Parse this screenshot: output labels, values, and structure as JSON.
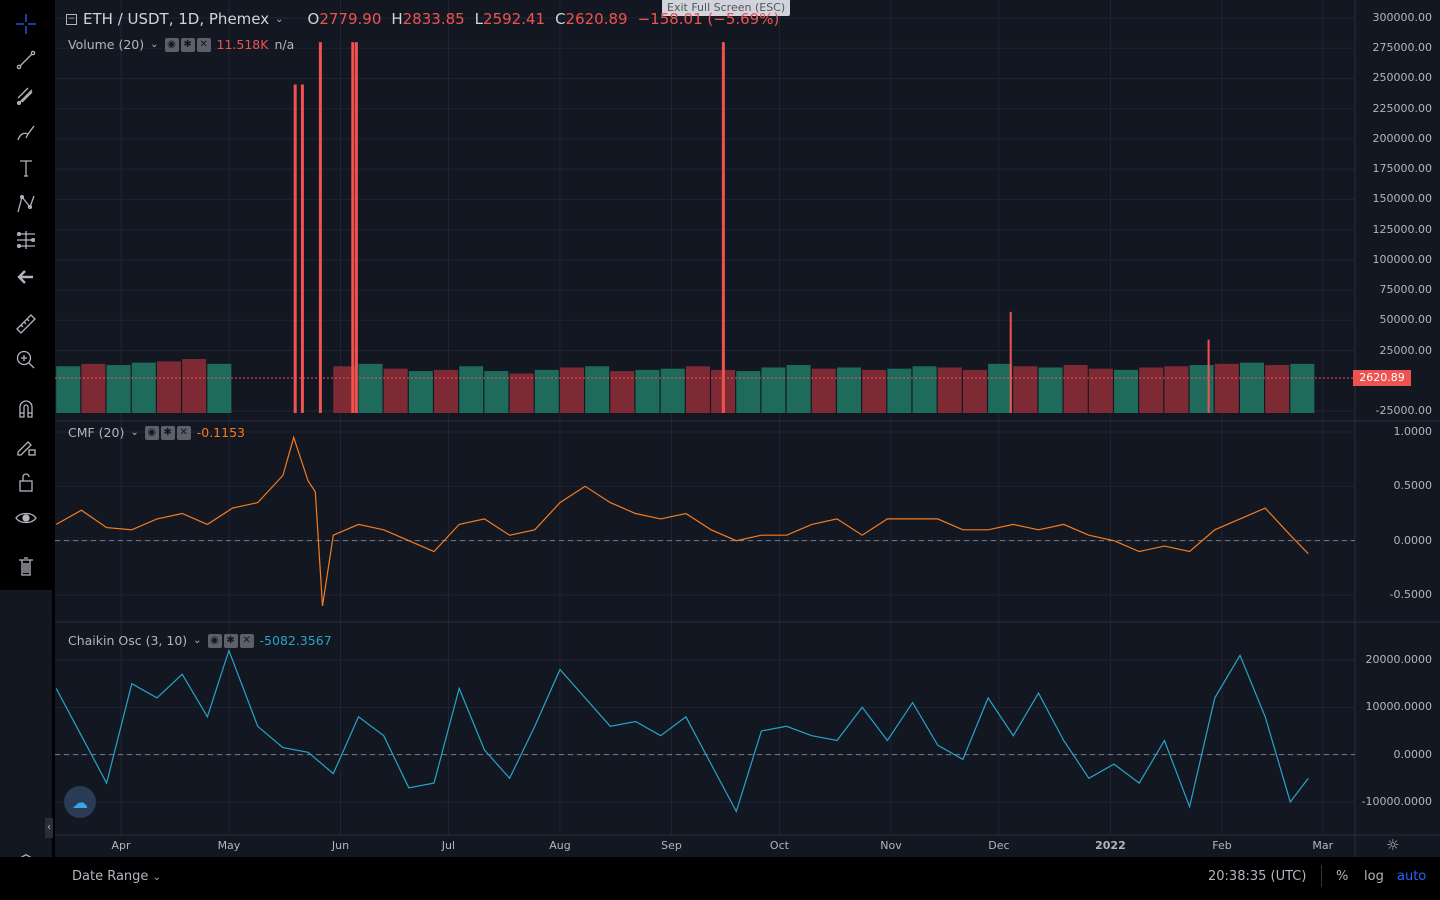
{
  "header": {
    "symbol": "ETH / USDT, 1D, Phemex",
    "o_label": "O",
    "o": "2779.90",
    "h_label": "H",
    "h": "2833.85",
    "l_label": "L",
    "l": "2592.41",
    "c_label": "C",
    "c": "2620.89",
    "change": "−158.01 (−5.69%)"
  },
  "tooltip": "Exit Full Screen (ESC)",
  "volume_legend": {
    "name": "Volume (20)",
    "value": "11.518K",
    "ma": "n/a"
  },
  "cmf_legend": {
    "name": "CMF (20)",
    "value": "-0.1153"
  },
  "chaikin_legend": {
    "name": "Chaikin Osc (3, 10)",
    "value": "-5082.3567"
  },
  "price_label": "2620.89",
  "colors": {
    "up": "#26a69a",
    "down": "#ef5350",
    "cmf": "#f57c1f",
    "chaikin": "#26a5c8",
    "accent": "#2962ff",
    "bg": "#131722"
  },
  "toolbar": [
    "crosshair-icon",
    "trend-line-icon",
    "pitchfork-icon",
    "brush-icon",
    "text-icon",
    "pattern-icon",
    "prediction-icon",
    "back-arrow-icon",
    "ruler-icon",
    "zoom-in-icon",
    "magnet-icon",
    "lock-drawing-icon",
    "unlock-icon",
    "eye-icon",
    "trash-icon"
  ],
  "bottombar": {
    "date_range": "Date Range",
    "time": "20:38:35 (UTC)",
    "percent": "%",
    "log": "log",
    "auto": "auto"
  },
  "chart_data": [
    {
      "type": "bar",
      "pane": "Volume (20)",
      "axis_ticks": [
        "300000.00",
        "275000.00",
        "250000.00",
        "225000.00",
        "200000.00",
        "175000.00",
        "150000.00",
        "125000.00",
        "100000.00",
        "75000.00",
        "50000.00",
        "25000.00",
        "-25000.00"
      ],
      "ylim": [
        -25000,
        300000
      ],
      "weekly_dates": [
        "2021-03-14",
        "2021-03-21",
        "2021-03-28",
        "2021-04-04",
        "2021-04-11",
        "2021-04-18",
        "2021-04-25",
        "2021-05-02",
        "2021-05-09",
        "2021-05-16",
        "2021-05-23",
        "2021-05-30",
        "2021-06-06",
        "2021-06-13",
        "2021-06-20",
        "2021-06-27",
        "2021-07-04",
        "2021-07-11",
        "2021-07-18",
        "2021-07-25",
        "2021-08-01",
        "2021-08-08",
        "2021-08-15",
        "2021-08-22",
        "2021-08-29",
        "2021-09-05",
        "2021-09-12",
        "2021-09-19",
        "2021-09-26",
        "2021-10-03",
        "2021-10-10",
        "2021-10-17",
        "2021-10-24",
        "2021-10-31",
        "2021-11-07",
        "2021-11-14",
        "2021-11-21",
        "2021-11-28",
        "2021-12-05",
        "2021-12-12",
        "2021-12-19",
        "2021-12-26",
        "2022-01-02",
        "2022-01-09",
        "2022-01-16",
        "2022-01-23",
        "2022-01-30",
        "2022-02-06",
        "2022-02-13",
        "2022-02-20"
      ],
      "values": [
        12000,
        14000,
        13000,
        15000,
        16000,
        18000,
        14000,
        -25000,
        -25000,
        -25000,
        -25000,
        12000,
        14000,
        10000,
        8000,
        9000,
        12000,
        8000,
        6000,
        9000,
        11000,
        12000,
        8000,
        9000,
        10000,
        12000,
        9000,
        8000,
        11000,
        13000,
        10000,
        11000,
        9000,
        10000,
        12000,
        11000,
        9000,
        14000,
        12000,
        11000,
        13000,
        10000,
        9000,
        11000,
        12000,
        13000,
        14000,
        15000,
        13000,
        14000
      ],
      "direction": [
        "up",
        "down",
        "up",
        "up",
        "down",
        "down",
        "up",
        "up",
        "down",
        "up",
        "down",
        "down",
        "up",
        "down",
        "up",
        "down",
        "up",
        "up",
        "down",
        "up",
        "down",
        "up",
        "down",
        "up",
        "up",
        "down",
        "down",
        "up",
        "up",
        "up",
        "down",
        "up",
        "down",
        "up",
        "up",
        "down",
        "down",
        "up",
        "down",
        "up",
        "down",
        "down",
        "up",
        "down",
        "down",
        "up",
        "down",
        "up",
        "down",
        "up"
      ],
      "spikes": [
        {
          "date": "2021-05-19",
          "value": 245000,
          "direction": "down"
        },
        {
          "date": "2021-05-21",
          "value": 245000,
          "direction": "down"
        },
        {
          "date": "2021-05-26",
          "value": 280000,
          "direction": "down"
        },
        {
          "date": "2021-06-04",
          "value": 280000,
          "direction": "down"
        },
        {
          "date": "2021-06-05",
          "value": 280000,
          "direction": "down"
        },
        {
          "date": "2021-09-15",
          "value": 280000,
          "direction": "down"
        },
        {
          "date": "2021-12-04",
          "value": 57000,
          "direction": "down"
        },
        {
          "date": "2022-01-28",
          "value": 34000,
          "direction": "down"
        }
      ]
    },
    {
      "type": "line",
      "pane": "CMF (20)",
      "axis_ticks": [
        "1.0000",
        "0.5000",
        "0.0000",
        "-0.5000"
      ],
      "ylim": [
        -0.75,
        1.0
      ],
      "points": [
        [
          "2021-03-14",
          0.15
        ],
        [
          "2021-03-21",
          0.28
        ],
        [
          "2021-03-28",
          0.12
        ],
        [
          "2021-04-04",
          0.1
        ],
        [
          "2021-04-11",
          0.2
        ],
        [
          "2021-04-18",
          0.25
        ],
        [
          "2021-04-25",
          0.15
        ],
        [
          "2021-05-02",
          0.3
        ],
        [
          "2021-05-09",
          0.35
        ],
        [
          "2021-05-16",
          0.6
        ],
        [
          "2021-05-19",
          0.95
        ],
        [
          "2021-05-23",
          0.55
        ],
        [
          "2021-05-25",
          0.45
        ],
        [
          "2021-05-27",
          -0.6
        ],
        [
          "2021-05-30",
          0.05
        ],
        [
          "2021-06-06",
          0.15
        ],
        [
          "2021-06-13",
          0.1
        ],
        [
          "2021-06-20",
          0.0
        ],
        [
          "2021-06-27",
          -0.1
        ],
        [
          "2021-07-04",
          0.15
        ],
        [
          "2021-07-11",
          0.2
        ],
        [
          "2021-07-18",
          0.05
        ],
        [
          "2021-07-25",
          0.1
        ],
        [
          "2021-08-01",
          0.35
        ],
        [
          "2021-08-08",
          0.5
        ],
        [
          "2021-08-15",
          0.35
        ],
        [
          "2021-08-22",
          0.25
        ],
        [
          "2021-08-29",
          0.2
        ],
        [
          "2021-09-05",
          0.25
        ],
        [
          "2021-09-12",
          0.1
        ],
        [
          "2021-09-19",
          0.0
        ],
        [
          "2021-09-26",
          0.05
        ],
        [
          "2021-10-03",
          0.05
        ],
        [
          "2021-10-10",
          0.15
        ],
        [
          "2021-10-17",
          0.2
        ],
        [
          "2021-10-24",
          0.05
        ],
        [
          "2021-10-31",
          0.2
        ],
        [
          "2021-11-07",
          0.2
        ],
        [
          "2021-11-14",
          0.2
        ],
        [
          "2021-11-21",
          0.1
        ],
        [
          "2021-11-28",
          0.1
        ],
        [
          "2021-12-05",
          0.15
        ],
        [
          "2021-12-12",
          0.1
        ],
        [
          "2021-12-19",
          0.15
        ],
        [
          "2021-12-26",
          0.05
        ],
        [
          "2022-01-02",
          0.0
        ],
        [
          "2022-01-09",
          -0.1
        ],
        [
          "2022-01-16",
          -0.05
        ],
        [
          "2022-01-23",
          -0.1
        ],
        [
          "2022-01-30",
          0.1
        ],
        [
          "2022-02-06",
          0.2
        ],
        [
          "2022-02-13",
          0.3
        ],
        [
          "2022-02-20",
          0.05
        ],
        [
          "2022-02-25",
          -0.12
        ]
      ]
    },
    {
      "type": "line",
      "pane": "Chaikin Osc (3, 10)",
      "axis_ticks": [
        "20000.0000",
        "10000.0000",
        "0.0000",
        "-10000.0000"
      ],
      "ylim": [
        -12000,
        22000
      ],
      "points": [
        [
          "2021-03-14",
          14000
        ],
        [
          "2021-03-21",
          4000
        ],
        [
          "2021-03-28",
          -6000
        ],
        [
          "2021-04-04",
          15000
        ],
        [
          "2021-04-11",
          12000
        ],
        [
          "2021-04-18",
          17000
        ],
        [
          "2021-04-25",
          8000
        ],
        [
          "2021-05-01",
          22000
        ],
        [
          "2021-05-09",
          6000
        ],
        [
          "2021-05-16",
          1500
        ],
        [
          "2021-05-23",
          500
        ],
        [
          "2021-05-30",
          -4000
        ],
        [
          "2021-06-06",
          8000
        ],
        [
          "2021-06-13",
          4000
        ],
        [
          "2021-06-20",
          -7000
        ],
        [
          "2021-06-27",
          -6000
        ],
        [
          "2021-07-04",
          14000
        ],
        [
          "2021-07-11",
          1000
        ],
        [
          "2021-07-18",
          -5000
        ],
        [
          "2021-07-25",
          6000
        ],
        [
          "2021-08-01",
          18000
        ],
        [
          "2021-08-08",
          12000
        ],
        [
          "2021-08-15",
          6000
        ],
        [
          "2021-08-22",
          7000
        ],
        [
          "2021-08-29",
          4000
        ],
        [
          "2021-09-05",
          8000
        ],
        [
          "2021-09-12",
          -2000
        ],
        [
          "2021-09-19",
          -12000
        ],
        [
          "2021-09-26",
          5000
        ],
        [
          "2021-10-03",
          6000
        ],
        [
          "2021-10-10",
          4000
        ],
        [
          "2021-10-17",
          3000
        ],
        [
          "2021-10-24",
          10000
        ],
        [
          "2021-10-31",
          3000
        ],
        [
          "2021-11-07",
          11000
        ],
        [
          "2021-11-14",
          2000
        ],
        [
          "2021-11-21",
          -1000
        ],
        [
          "2021-11-28",
          12000
        ],
        [
          "2021-12-05",
          4000
        ],
        [
          "2021-12-12",
          13000
        ],
        [
          "2021-12-19",
          3000
        ],
        [
          "2021-12-26",
          -5000
        ],
        [
          "2022-01-02",
          -2000
        ],
        [
          "2022-01-09",
          -6000
        ],
        [
          "2022-01-16",
          3000
        ],
        [
          "2022-01-23",
          -11000
        ],
        [
          "2022-01-30",
          12000
        ],
        [
          "2022-02-06",
          21000
        ],
        [
          "2022-02-13",
          8000
        ],
        [
          "2022-02-20",
          -10000
        ],
        [
          "2022-02-25",
          -5000
        ]
      ]
    },
    {
      "type": "axis",
      "time_ticks": [
        [
          "Apr",
          "2021-04-01"
        ],
        [
          "May",
          "2021-05-01"
        ],
        [
          "Jun",
          "2021-06-01"
        ],
        [
          "Jul",
          "2021-07-01"
        ],
        [
          "Aug",
          "2021-08-01"
        ],
        [
          "Sep",
          "2021-09-01"
        ],
        [
          "Oct",
          "2021-10-01"
        ],
        [
          "Nov",
          "2021-11-01"
        ],
        [
          "Dec",
          "2021-12-01"
        ],
        [
          "2022",
          "2022-01-01"
        ],
        [
          "Feb",
          "2022-02-01"
        ],
        [
          "Mar",
          "2022-03-01"
        ]
      ]
    }
  ]
}
